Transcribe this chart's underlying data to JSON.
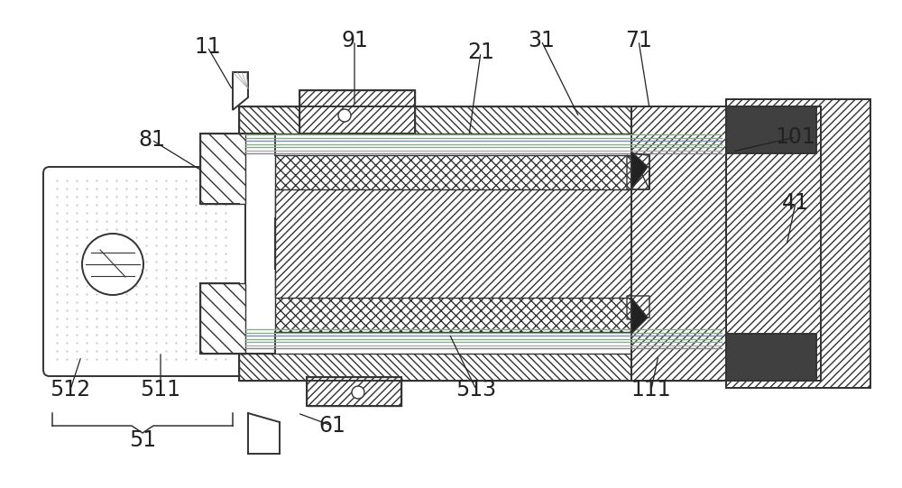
{
  "bg_color": "#ffffff",
  "line_color": "#333333",
  "dark_fill": "#444444",
  "figsize": [
    10.0,
    5.41
  ],
  "dpi": 100,
  "labels": {
    "11": [
      230,
      52,
      258,
      100
    ],
    "91": [
      393,
      45,
      393,
      118
    ],
    "21": [
      533,
      58,
      520,
      148
    ],
    "31": [
      602,
      45,
      640,
      128
    ],
    "71": [
      708,
      45,
      718,
      118
    ],
    "81": [
      168,
      155,
      222,
      188
    ],
    "101": [
      878,
      152,
      812,
      168
    ],
    "41": [
      878,
      222,
      870,
      270
    ],
    "512": [
      78,
      432,
      88,
      395
    ],
    "511": [
      178,
      432,
      178,
      388
    ],
    "61": [
      368,
      472,
      328,
      458
    ],
    "513": [
      528,
      432,
      498,
      368
    ],
    "111": [
      718,
      432,
      728,
      392
    ]
  }
}
